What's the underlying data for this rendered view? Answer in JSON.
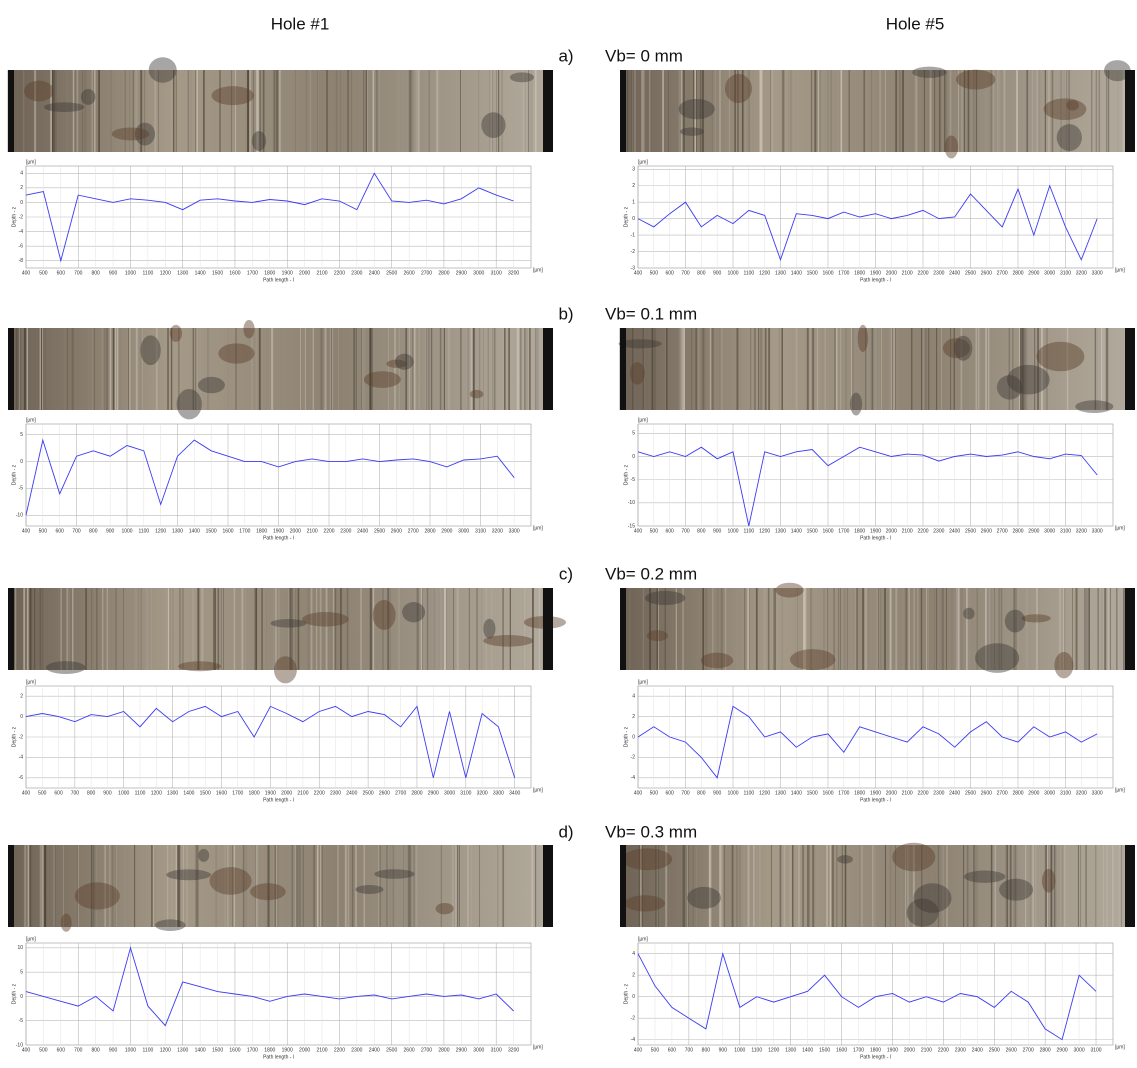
{
  "columns": [
    "Hole #1",
    "Hole #5"
  ],
  "rows": [
    {
      "label": "a)",
      "caption": "Vb= 0 mm"
    },
    {
      "label": "b)",
      "caption": "Vb= 0.1 mm"
    },
    {
      "label": "c)",
      "caption": "Vb= 0.2 mm"
    },
    {
      "label": "d)",
      "caption": "Vb= 0.3 mm"
    }
  ],
  "axis": {
    "x_label": "Path length - l",
    "y_label": "Depth - z",
    "unit": "[µm]"
  },
  "chart_data": [
    {
      "type": "line",
      "color": "#3b3bf5",
      "xlim": [
        400,
        3300
      ],
      "ylim": [
        -9,
        5
      ],
      "yticks": [
        -8,
        -6,
        -4,
        -2,
        0,
        2,
        4
      ],
      "xticks": [
        400,
        500,
        600,
        700,
        800,
        900,
        1000,
        1100,
        1200,
        1300,
        1400,
        1500,
        1600,
        1700,
        1800,
        1900,
        2000,
        2100,
        2200,
        2300,
        2400,
        2500,
        2600,
        2700,
        2800,
        2900,
        3000,
        3100,
        3200
      ],
      "x": [
        400,
        500,
        600,
        700,
        800,
        900,
        1000,
        1100,
        1200,
        1300,
        1400,
        1500,
        1600,
        1700,
        1800,
        1900,
        2000,
        2100,
        2200,
        2300,
        2400,
        2500,
        2600,
        2700,
        2800,
        2900,
        3000,
        3100,
        3200
      ],
      "values": [
        1,
        1.5,
        -8,
        1,
        0.5,
        0,
        0.5,
        0.3,
        0,
        -1,
        0.3,
        0.5,
        0.2,
        0,
        0.4,
        0.2,
        -0.3,
        0.5,
        0.2,
        -1,
        4,
        0.2,
        0,
        0.3,
        -0.2,
        0.5,
        2,
        1,
        0.2
      ]
    },
    {
      "type": "line",
      "color": "#3b3bf5",
      "xlim": [
        400,
        3400
      ],
      "ylim": [
        -3,
        3.2
      ],
      "yticks": [
        -3,
        -2,
        -1,
        0,
        1,
        2,
        3
      ],
      "xticks": [
        400,
        500,
        600,
        700,
        800,
        900,
        1000,
        1100,
        1200,
        1300,
        1400,
        1500,
        1600,
        1700,
        1800,
        1900,
        2000,
        2100,
        2200,
        2300,
        2400,
        2500,
        2600,
        2700,
        2800,
        2900,
        3000,
        3100,
        3200,
        3300
      ],
      "x": [
        400,
        500,
        600,
        700,
        800,
        900,
        1000,
        1100,
        1200,
        1300,
        1400,
        1500,
        1600,
        1700,
        1800,
        1900,
        2000,
        2100,
        2200,
        2300,
        2400,
        2500,
        2600,
        2700,
        2800,
        2900,
        3000,
        3100,
        3200,
        3300
      ],
      "values": [
        0,
        -0.5,
        0.3,
        1,
        -0.5,
        0.2,
        -0.3,
        0.5,
        0.2,
        -2.5,
        0.3,
        0.2,
        0,
        0.4,
        0.1,
        0.3,
        0,
        0.2,
        0.5,
        0,
        0.1,
        1.5,
        0.5,
        -0.5,
        1.8,
        -1,
        2,
        -0.5,
        -2.5,
        0
      ]
    },
    {
      "type": "line",
      "color": "#3b3bf5",
      "xlim": [
        400,
        3400
      ],
      "ylim": [
        -12,
        7
      ],
      "yticks": [
        -10,
        -5,
        0,
        5
      ],
      "xticks": [
        400,
        500,
        600,
        700,
        800,
        900,
        1000,
        1100,
        1200,
        1300,
        1400,
        1500,
        1600,
        1700,
        1800,
        1900,
        2000,
        2100,
        2200,
        2300,
        2400,
        2500,
        2600,
        2700,
        2800,
        2900,
        3000,
        3100,
        3200,
        3300
      ],
      "x": [
        400,
        500,
        600,
        700,
        800,
        900,
        1000,
        1100,
        1200,
        1300,
        1400,
        1500,
        1600,
        1700,
        1800,
        1900,
        2000,
        2100,
        2200,
        2300,
        2400,
        2500,
        2600,
        2700,
        2800,
        2900,
        3000,
        3100,
        3200,
        3300
      ],
      "values": [
        -10,
        4,
        -6,
        1,
        2,
        1,
        3,
        2,
        -8,
        1,
        4,
        2,
        1,
        0,
        0,
        -1,
        0,
        0.5,
        0,
        0,
        0.5,
        0,
        0.3,
        0.5,
        0,
        -1,
        0.3,
        0.5,
        1,
        -3
      ]
    },
    {
      "type": "line",
      "color": "#3b3bf5",
      "xlim": [
        400,
        3400
      ],
      "ylim": [
        -15,
        7
      ],
      "yticks": [
        -15,
        -10,
        -5,
        0,
        5
      ],
      "xticks": [
        400,
        500,
        600,
        700,
        800,
        900,
        1000,
        1100,
        1200,
        1300,
        1400,
        1500,
        1600,
        1700,
        1800,
        1900,
        2000,
        2100,
        2200,
        2300,
        2400,
        2500,
        2600,
        2700,
        2800,
        2900,
        3000,
        3100,
        3200,
        3300
      ],
      "x": [
        400,
        500,
        600,
        700,
        800,
        900,
        1000,
        1100,
        1200,
        1300,
        1400,
        1500,
        1600,
        1700,
        1800,
        1900,
        2000,
        2100,
        2200,
        2300,
        2400,
        2500,
        2600,
        2700,
        2800,
        2900,
        3000,
        3100,
        3200,
        3300
      ],
      "values": [
        1,
        0,
        1,
        0,
        2,
        -0.5,
        1,
        -15,
        1,
        0,
        1,
        1.5,
        -2,
        0,
        2,
        1,
        0,
        0.5,
        0.3,
        -1,
        0,
        0.5,
        0,
        0.3,
        1,
        0,
        -0.5,
        0.5,
        0.2,
        -4
      ]
    },
    {
      "type": "line",
      "color": "#3b3bf5",
      "xlim": [
        400,
        3500
      ],
      "ylim": [
        -7,
        3
      ],
      "yticks": [
        -6,
        -4,
        -2,
        0,
        2
      ],
      "xticks": [
        400,
        500,
        600,
        700,
        800,
        900,
        1000,
        1100,
        1200,
        1300,
        1400,
        1500,
        1600,
        1700,
        1800,
        1900,
        2000,
        2100,
        2200,
        2300,
        2400,
        2500,
        2600,
        2700,
        2800,
        2900,
        3000,
        3100,
        3200,
        3300,
        3400
      ],
      "x": [
        400,
        500,
        600,
        700,
        800,
        900,
        1000,
        1100,
        1200,
        1300,
        1400,
        1500,
        1600,
        1700,
        1800,
        1900,
        2000,
        2100,
        2200,
        2300,
        2400,
        2500,
        2600,
        2700,
        2800,
        2900,
        3000,
        3100,
        3200,
        3300,
        3400
      ],
      "values": [
        0,
        0.3,
        0,
        -0.5,
        0.2,
        0,
        0.5,
        -1,
        0.8,
        -0.5,
        0.5,
        1,
        0,
        0.5,
        -2,
        1,
        0.3,
        -0.5,
        0.5,
        1,
        0,
        0.5,
        0.2,
        -1,
        1,
        -6,
        0.5,
        -6,
        0.3,
        -1,
        -6
      ]
    },
    {
      "type": "line",
      "color": "#3b3bf5",
      "xlim": [
        400,
        3400
      ],
      "ylim": [
        -5,
        5
      ],
      "yticks": [
        -4,
        -2,
        0,
        2,
        4
      ],
      "xticks": [
        400,
        500,
        600,
        700,
        800,
        900,
        1000,
        1100,
        1200,
        1300,
        1400,
        1500,
        1600,
        1700,
        1800,
        1900,
        2000,
        2100,
        2200,
        2300,
        2400,
        2500,
        2600,
        2700,
        2800,
        2900,
        3000,
        3100,
        3200,
        3300
      ],
      "x": [
        400,
        500,
        600,
        700,
        800,
        900,
        1000,
        1100,
        1200,
        1300,
        1400,
        1500,
        1600,
        1700,
        1800,
        1900,
        2000,
        2100,
        2200,
        2300,
        2400,
        2500,
        2600,
        2700,
        2800,
        2900,
        3000,
        3100,
        3200,
        3300
      ],
      "values": [
        0,
        1,
        0,
        -0.5,
        -2,
        -4,
        3,
        2,
        0,
        0.5,
        -1,
        0,
        0.3,
        -1.5,
        1,
        0.5,
        0,
        -0.5,
        1,
        0.3,
        -1,
        0.5,
        1.5,
        0,
        -0.5,
        1,
        0,
        0.5,
        -0.5,
        0.3
      ]
    },
    {
      "type": "line",
      "color": "#3b3bf5",
      "xlim": [
        400,
        3300
      ],
      "ylim": [
        -10,
        11
      ],
      "yticks": [
        -10,
        -5,
        0,
        5,
        10
      ],
      "xticks": [
        400,
        500,
        600,
        700,
        800,
        900,
        1000,
        1100,
        1200,
        1300,
        1400,
        1500,
        1600,
        1700,
        1800,
        1900,
        2000,
        2100,
        2200,
        2300,
        2400,
        2500,
        2600,
        2700,
        2800,
        2900,
        3000,
        3100,
        3200
      ],
      "x": [
        400,
        500,
        600,
        700,
        800,
        900,
        1000,
        1100,
        1200,
        1300,
        1400,
        1500,
        1600,
        1700,
        1800,
        1900,
        2000,
        2100,
        2200,
        2300,
        2400,
        2500,
        2600,
        2700,
        2800,
        2900,
        3000,
        3100,
        3200
      ],
      "values": [
        1,
        0,
        -1,
        -2,
        0,
        -3,
        10,
        -2,
        -6,
        3,
        2,
        1,
        0.5,
        0,
        -1,
        0,
        0.5,
        0,
        -0.5,
        0,
        0.3,
        -0.5,
        0,
        0.5,
        0,
        0.3,
        -0.5,
        0.5,
        -3
      ]
    },
    {
      "type": "line",
      "color": "#3b3bf5",
      "xlim": [
        400,
        3200
      ],
      "ylim": [
        -4.5,
        5
      ],
      "yticks": [
        -4,
        -2,
        0,
        2,
        4
      ],
      "xticks": [
        400,
        500,
        600,
        700,
        800,
        900,
        1000,
        1100,
        1200,
        1300,
        1400,
        1500,
        1600,
        1700,
        1800,
        1900,
        2000,
        2100,
        2200,
        2300,
        2400,
        2500,
        2600,
        2700,
        2800,
        2900,
        3000,
        3100
      ],
      "x": [
        400,
        500,
        600,
        700,
        800,
        900,
        1000,
        1100,
        1200,
        1300,
        1400,
        1500,
        1600,
        1700,
        1800,
        1900,
        2000,
        2100,
        2200,
        2300,
        2400,
        2500,
        2600,
        2700,
        2800,
        2900,
        3000,
        3100
      ],
      "values": [
        4,
        1,
        -1,
        -2,
        -3,
        4,
        -1,
        0,
        -0.5,
        0,
        0.5,
        2,
        0,
        -1,
        0,
        0.3,
        -0.5,
        0,
        -0.5,
        0.3,
        0,
        -1,
        0.5,
        -0.5,
        -3,
        -4,
        2,
        0.5
      ]
    }
  ]
}
